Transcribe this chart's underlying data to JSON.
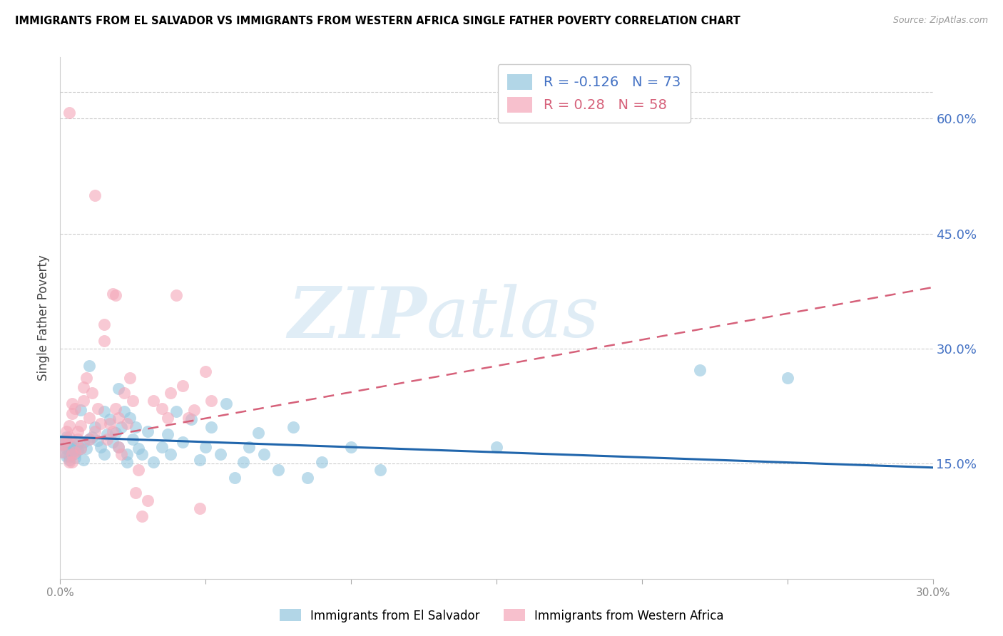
{
  "title": "IMMIGRANTS FROM EL SALVADOR VS IMMIGRANTS FROM WESTERN AFRICA SINGLE FATHER POVERTY CORRELATION CHART",
  "source": "Source: ZipAtlas.com",
  "ylabel": "Single Father Poverty",
  "y_ticks": [
    0.15,
    0.3,
    0.45,
    0.6
  ],
  "y_tick_labels": [
    "15.0%",
    "30.0%",
    "45.0%",
    "60.0%"
  ],
  "xlim": [
    0.0,
    0.3
  ],
  "ylim": [
    0.0,
    0.68
  ],
  "x_ticks": [
    0.0,
    0.05,
    0.1,
    0.15,
    0.2,
    0.25,
    0.3
  ],
  "x_tick_labels": [
    "0.0%",
    "",
    "",
    "",
    "",
    "",
    "30.0%"
  ],
  "R_blue": -0.126,
  "N_blue": 73,
  "R_pink": 0.28,
  "N_pink": 58,
  "color_blue": "#92c5de",
  "color_pink": "#f4a6b8",
  "color_blue_line": "#2166ac",
  "color_pink_line": "#d6617a",
  "legend_label_blue": "Immigrants from El Salvador",
  "legend_label_pink": "Immigrants from Western Africa",
  "watermark_zip": "ZIP",
  "watermark_atlas": "atlas",
  "grid_color": "#cccccc",
  "right_axis_color": "#4472c4",
  "scatter_blue": [
    [
      0.001,
      0.175
    ],
    [
      0.001,
      0.165
    ],
    [
      0.001,
      0.18
    ],
    [
      0.002,
      0.17
    ],
    [
      0.002,
      0.16
    ],
    [
      0.002,
      0.185
    ],
    [
      0.003,
      0.175
    ],
    [
      0.003,
      0.168
    ],
    [
      0.003,
      0.16
    ],
    [
      0.003,
      0.155
    ],
    [
      0.004,
      0.172
    ],
    [
      0.004,
      0.165
    ],
    [
      0.004,
      0.178
    ],
    [
      0.005,
      0.17
    ],
    [
      0.005,
      0.163
    ],
    [
      0.005,
      0.158
    ],
    [
      0.006,
      0.175
    ],
    [
      0.006,
      0.168
    ],
    [
      0.007,
      0.22
    ],
    [
      0.007,
      0.17
    ],
    [
      0.008,
      0.178
    ],
    [
      0.008,
      0.155
    ],
    [
      0.009,
      0.17
    ],
    [
      0.01,
      0.182
    ],
    [
      0.01,
      0.278
    ],
    [
      0.011,
      0.185
    ],
    [
      0.012,
      0.198
    ],
    [
      0.013,
      0.18
    ],
    [
      0.014,
      0.172
    ],
    [
      0.015,
      0.218
    ],
    [
      0.015,
      0.162
    ],
    [
      0.016,
      0.188
    ],
    [
      0.017,
      0.208
    ],
    [
      0.018,
      0.178
    ],
    [
      0.019,
      0.19
    ],
    [
      0.02,
      0.172
    ],
    [
      0.02,
      0.248
    ],
    [
      0.021,
      0.198
    ],
    [
      0.022,
      0.218
    ],
    [
      0.023,
      0.162
    ],
    [
      0.023,
      0.152
    ],
    [
      0.024,
      0.21
    ],
    [
      0.025,
      0.182
    ],
    [
      0.026,
      0.198
    ],
    [
      0.027,
      0.17
    ],
    [
      0.028,
      0.162
    ],
    [
      0.03,
      0.192
    ],
    [
      0.032,
      0.152
    ],
    [
      0.035,
      0.172
    ],
    [
      0.037,
      0.188
    ],
    [
      0.038,
      0.162
    ],
    [
      0.04,
      0.218
    ],
    [
      0.042,
      0.178
    ],
    [
      0.045,
      0.208
    ],
    [
      0.048,
      0.155
    ],
    [
      0.05,
      0.172
    ],
    [
      0.052,
      0.198
    ],
    [
      0.055,
      0.162
    ],
    [
      0.057,
      0.228
    ],
    [
      0.06,
      0.132
    ],
    [
      0.063,
      0.152
    ],
    [
      0.065,
      0.172
    ],
    [
      0.068,
      0.19
    ],
    [
      0.07,
      0.162
    ],
    [
      0.075,
      0.142
    ],
    [
      0.08,
      0.198
    ],
    [
      0.085,
      0.132
    ],
    [
      0.09,
      0.152
    ],
    [
      0.1,
      0.172
    ],
    [
      0.11,
      0.142
    ],
    [
      0.15,
      0.172
    ],
    [
      0.22,
      0.272
    ],
    [
      0.25,
      0.262
    ]
  ],
  "scatter_pink": [
    [
      0.001,
      0.175
    ],
    [
      0.001,
      0.165
    ],
    [
      0.002,
      0.18
    ],
    [
      0.002,
      0.192
    ],
    [
      0.003,
      0.185
    ],
    [
      0.003,
      0.2
    ],
    [
      0.003,
      0.608
    ],
    [
      0.004,
      0.215
    ],
    [
      0.004,
      0.228
    ],
    [
      0.004,
      0.162
    ],
    [
      0.004,
      0.152
    ],
    [
      0.005,
      0.165
    ],
    [
      0.005,
      0.222
    ],
    [
      0.006,
      0.182
    ],
    [
      0.006,
      0.192
    ],
    [
      0.007,
      0.2
    ],
    [
      0.007,
      0.17
    ],
    [
      0.008,
      0.232
    ],
    [
      0.008,
      0.25
    ],
    [
      0.009,
      0.262
    ],
    [
      0.01,
      0.182
    ],
    [
      0.01,
      0.21
    ],
    [
      0.011,
      0.242
    ],
    [
      0.012,
      0.192
    ],
    [
      0.012,
      0.5
    ],
    [
      0.013,
      0.222
    ],
    [
      0.014,
      0.202
    ],
    [
      0.015,
      0.31
    ],
    [
      0.015,
      0.332
    ],
    [
      0.016,
      0.182
    ],
    [
      0.017,
      0.202
    ],
    [
      0.018,
      0.192
    ],
    [
      0.018,
      0.372
    ],
    [
      0.019,
      0.222
    ],
    [
      0.02,
      0.172
    ],
    [
      0.02,
      0.21
    ],
    [
      0.021,
      0.162
    ],
    [
      0.022,
      0.242
    ],
    [
      0.023,
      0.202
    ],
    [
      0.024,
      0.262
    ],
    [
      0.025,
      0.232
    ],
    [
      0.026,
      0.112
    ],
    [
      0.027,
      0.142
    ],
    [
      0.028,
      0.082
    ],
    [
      0.03,
      0.102
    ],
    [
      0.032,
      0.232
    ],
    [
      0.035,
      0.222
    ],
    [
      0.037,
      0.21
    ],
    [
      0.038,
      0.242
    ],
    [
      0.04,
      0.37
    ],
    [
      0.042,
      0.252
    ],
    [
      0.044,
      0.21
    ],
    [
      0.046,
      0.22
    ],
    [
      0.048,
      0.092
    ],
    [
      0.05,
      0.27
    ],
    [
      0.052,
      0.232
    ],
    [
      0.019,
      0.37
    ],
    [
      0.003,
      0.152
    ]
  ]
}
